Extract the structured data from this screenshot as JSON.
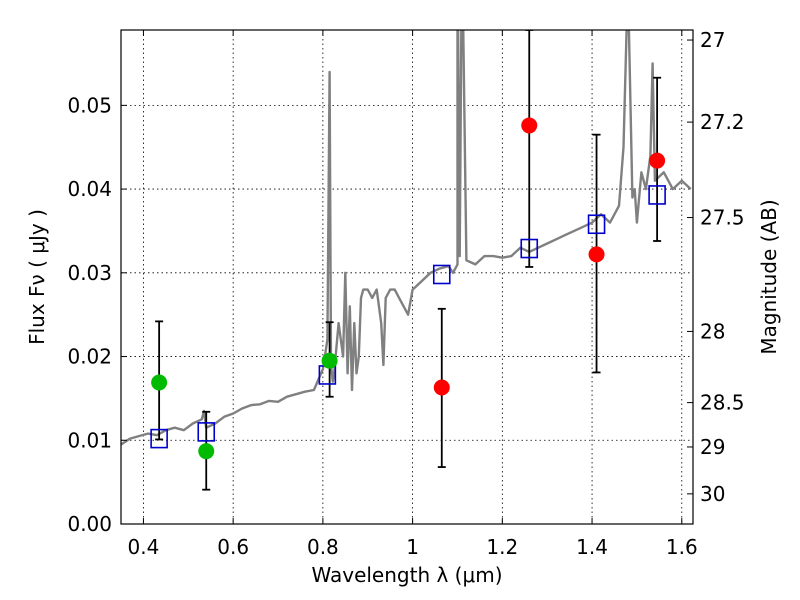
{
  "chart_data": {
    "type": "scatter",
    "xlabel": "Wavelength  λ (μm)",
    "ylabel": "Flux  Fν  ( μJy )",
    "y2label": "Magnitude (AB)",
    "xlim": [
      0.35,
      1.625
    ],
    "ylim": [
      0.0,
      0.059
    ],
    "grid": true,
    "xticks": [
      {
        "value": 0.4,
        "label": "0.4"
      },
      {
        "value": 0.6,
        "label": "0.6"
      },
      {
        "value": 0.8,
        "label": "0.8"
      },
      {
        "value": 1.0,
        "label": "1"
      },
      {
        "value": 1.2,
        "label": "1.2"
      },
      {
        "value": 1.4,
        "label": "1.4"
      },
      {
        "value": 1.6,
        "label": "1.6"
      }
    ],
    "yticks": [
      {
        "value": 0.0,
        "label": "0.00"
      },
      {
        "value": 0.01,
        "label": "0.01"
      },
      {
        "value": 0.02,
        "label": "0.02"
      },
      {
        "value": 0.03,
        "label": "0.03"
      },
      {
        "value": 0.04,
        "label": "0.04"
      },
      {
        "value": 0.05,
        "label": "0.05"
      }
    ],
    "y2ticks": [
      {
        "flux": 0.0578,
        "label": "27"
      },
      {
        "flux": 0.048,
        "label": "27.2"
      },
      {
        "flux": 0.0366,
        "label": "27.5"
      },
      {
        "flux": 0.023,
        "label": "28"
      },
      {
        "flux": 0.0145,
        "label": "28.5"
      },
      {
        "flux": 0.0092,
        "label": "29"
      },
      {
        "flux": 0.0036,
        "label": "30"
      }
    ],
    "series": [
      {
        "name": "model spectrum",
        "kind": "line",
        "color": "#808080",
        "x": [
          0.35,
          0.37,
          0.39,
          0.41,
          0.43,
          0.45,
          0.47,
          0.49,
          0.51,
          0.53,
          0.535,
          0.54,
          0.56,
          0.58,
          0.6,
          0.62,
          0.64,
          0.66,
          0.68,
          0.7,
          0.72,
          0.74,
          0.76,
          0.78,
          0.8,
          0.81,
          0.815,
          0.818,
          0.82,
          0.822,
          0.825,
          0.835,
          0.845,
          0.85,
          0.855,
          0.86,
          0.865,
          0.87,
          0.875,
          0.88,
          0.885,
          0.89,
          0.9,
          0.91,
          0.92,
          0.93,
          0.935,
          0.94,
          0.95,
          0.96,
          0.97,
          0.98,
          0.99,
          1.0,
          1.02,
          1.04,
          1.06,
          1.08,
          1.09,
          1.1,
          1.1,
          1.105,
          1.11,
          1.12,
          1.14,
          1.16,
          1.18,
          1.2,
          1.22,
          1.24,
          1.26,
          1.28,
          1.3,
          1.32,
          1.34,
          1.36,
          1.38,
          1.4,
          1.42,
          1.44,
          1.46,
          1.47,
          1.48,
          1.49,
          1.495,
          1.5,
          1.51,
          1.52,
          1.53,
          1.535,
          1.54,
          1.56,
          1.58,
          1.6,
          1.62
        ],
        "y": [
          0.0095,
          0.0102,
          0.0105,
          0.0108,
          0.0106,
          0.0112,
          0.0115,
          0.0112,
          0.012,
          0.0125,
          0.0135,
          0.0115,
          0.012,
          0.0128,
          0.0132,
          0.0138,
          0.0142,
          0.0143,
          0.0147,
          0.0146,
          0.0152,
          0.0155,
          0.0158,
          0.016,
          0.0185,
          0.022,
          0.054,
          0.019,
          0.018,
          0.017,
          0.018,
          0.024,
          0.02,
          0.03,
          0.018,
          0.026,
          0.016,
          0.024,
          0.018,
          0.02,
          0.027,
          0.028,
          0.028,
          0.027,
          0.028,
          0.024,
          0.019,
          0.027,
          0.028,
          0.028,
          0.027,
          0.026,
          0.025,
          0.028,
          0.029,
          0.03,
          0.0305,
          0.0308,
          0.03,
          0.031,
          0.07,
          0.032,
          0.07,
          0.0315,
          0.031,
          0.032,
          0.032,
          0.0318,
          0.032,
          0.033,
          0.0325,
          0.033,
          0.0335,
          0.034,
          0.0345,
          0.035,
          0.0355,
          0.036,
          0.037,
          0.036,
          0.038,
          0.045,
          0.065,
          0.039,
          0.04,
          0.036,
          0.042,
          0.04,
          0.044,
          0.055,
          0.041,
          0.042,
          0.04,
          0.041,
          0.04
        ]
      },
      {
        "name": "model photometry",
        "kind": "open-square",
        "color": "#0000cc",
        "x": [
          0.435,
          0.54,
          0.81,
          1.065,
          1.26,
          1.41,
          1.545
        ],
        "y": [
          0.0102,
          0.011,
          0.0178,
          0.0298,
          0.0329,
          0.0358,
          0.0393
        ]
      },
      {
        "name": "observed photometry (green)",
        "kind": "filled-circle",
        "color": "#00bb00",
        "x": [
          0.435,
          0.54,
          0.815
        ],
        "y": [
          0.0169,
          0.0087,
          0.0195
        ],
        "yerr": [
          [
            0.0101,
            0.0242
          ],
          [
            0.0041,
            0.0134
          ],
          [
            0.0152,
            0.0241
          ]
        ]
      },
      {
        "name": "observed photometry (red)",
        "kind": "filled-circle",
        "color": "#ff0000",
        "x": [
          1.065,
          1.26,
          1.41,
          1.545
        ],
        "y": [
          0.0163,
          0.0476,
          0.0322,
          0.0434
        ],
        "yerr": [
          [
            0.0068,
            0.0257
          ],
          [
            0.0307,
            0.059
          ],
          [
            0.0181,
            0.0465
          ],
          [
            0.0338,
            0.0533
          ]
        ]
      }
    ]
  }
}
